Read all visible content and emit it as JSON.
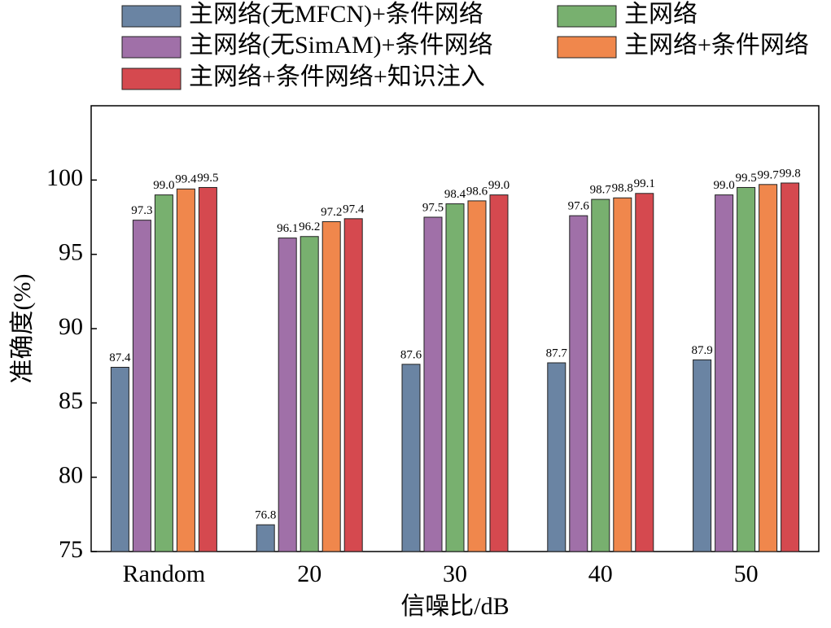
{
  "chart_data": {
    "type": "bar",
    "xlabel": "信噪比/dB",
    "ylabel": "准确度(%)",
    "categories": [
      "Random",
      "20",
      "30",
      "40",
      "50"
    ],
    "series": [
      {
        "name": "主网络(无MFCN)+条件网络",
        "color": "#6a84a3",
        "values": [
          87.4,
          76.8,
          87.6,
          87.7,
          87.9
        ],
        "value_labels": [
          "87.4",
          "76.8",
          "87.6",
          "87.7",
          "87.9"
        ]
      },
      {
        "name": "主网络(无SimAM)+条件网络",
        "color": "#a070a8",
        "values": [
          97.3,
          96.1,
          97.5,
          97.6,
          99.0
        ],
        "value_labels": [
          "97.3",
          "96.1",
          "97.5",
          "97.6",
          "99.0"
        ]
      },
      {
        "name": "主网络",
        "color": "#78b06f",
        "values": [
          99.0,
          96.2,
          98.4,
          98.7,
          99.5
        ],
        "value_labels": [
          "99.0",
          "96.2",
          "98.4",
          "98.7",
          "99.5"
        ]
      },
      {
        "name": "主网络+条件网络",
        "color": "#f0874c",
        "values": [
          99.4,
          97.2,
          98.6,
          98.8,
          99.7
        ],
        "value_labels": [
          "99.4",
          "97.2",
          "98.6",
          "98.8",
          "99.7"
        ]
      },
      {
        "name": "主网络+条件网络+知识注入",
        "color": "#d5494f",
        "values": [
          99.5,
          97.4,
          99.0,
          99.1,
          99.8
        ],
        "value_labels": [
          "99.5",
          "97.4",
          "99.0",
          "99.1",
          "99.8"
        ]
      }
    ],
    "ylim": [
      75,
      105
    ],
    "yticks": [
      75,
      80,
      85,
      90,
      95,
      100
    ],
    "grid": false
  }
}
